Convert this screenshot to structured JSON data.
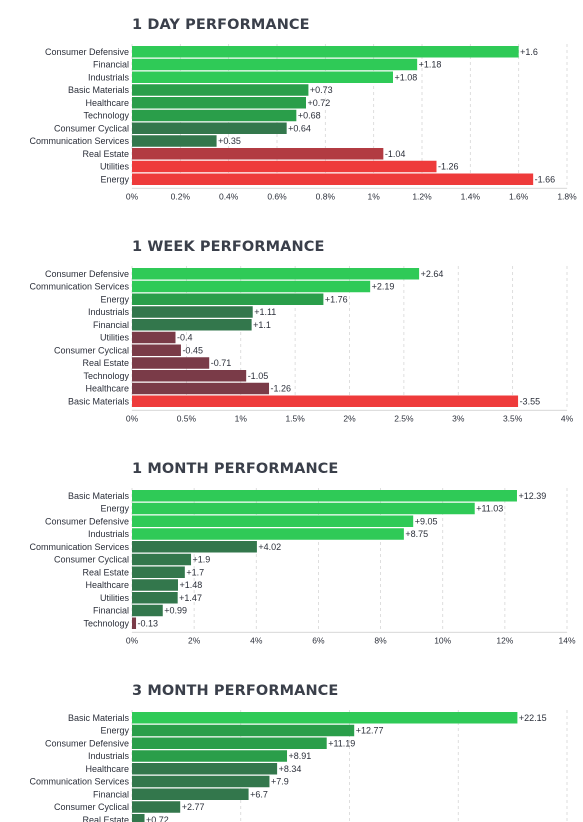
{
  "colors": {
    "strong_pos": "#2fca57",
    "mid_pos": "#2a9e4a",
    "weak_pos": "#33774c",
    "weak_neg": "#7a3b48",
    "mid_neg": "#b23b42",
    "strong_neg": "#ee3b3b",
    "grid": "#d6d6d6",
    "text": "#2b2f3a"
  },
  "chart_data": [
    {
      "type": "bar",
      "orientation": "horizontal",
      "title": "1 DAY PERFORMANCE",
      "categories": [
        "Consumer Defensive",
        "Financial",
        "Industrials",
        "Basic Materials",
        "Healthcare",
        "Technology",
        "Consumer Cyclical",
        "Communication Services",
        "Real Estate",
        "Utilities",
        "Energy"
      ],
      "values": [
        1.6,
        1.18,
        1.08,
        0.73,
        0.72,
        0.68,
        0.64,
        0.35,
        -1.04,
        -1.26,
        -1.66
      ],
      "value_labels": [
        "+1.6",
        "+1.18",
        "+1.08",
        "+0.73",
        "+0.72",
        "+0.68",
        "+0.64",
        "+0.35",
        "-1.04",
        "-1.26",
        "-1.66"
      ],
      "tick_labels": [
        "0%",
        "0.2%",
        "0.4%",
        "0.6%",
        "0.8%",
        "1%",
        "1.2%",
        "1.4%",
        "1.6%",
        "1.8%"
      ],
      "xlim": [
        0,
        1.8
      ],
      "grid": true
    },
    {
      "type": "bar",
      "orientation": "horizontal",
      "title": "1 WEEK PERFORMANCE",
      "categories": [
        "Consumer Defensive",
        "Communication Services",
        "Energy",
        "Industrials",
        "Financial",
        "Utilities",
        "Consumer Cyclical",
        "Real Estate",
        "Technology",
        "Healthcare",
        "Basic Materials"
      ],
      "values": [
        2.64,
        2.19,
        1.76,
        1.11,
        1.1,
        -0.4,
        -0.45,
        -0.71,
        -1.05,
        -1.26,
        -3.55
      ],
      "value_labels": [
        "+2.64",
        "+2.19",
        "+1.76",
        "+1.11",
        "+1.1",
        "-0.4",
        "-0.45",
        "-0.71",
        "-1.05",
        "-1.26",
        "-3.55"
      ],
      "tick_labels": [
        "0%",
        "0.5%",
        "1%",
        "1.5%",
        "2%",
        "2.5%",
        "3%",
        "3.5%",
        "4%"
      ],
      "xlim": [
        0,
        4
      ],
      "grid": true
    },
    {
      "type": "bar",
      "orientation": "horizontal",
      "title": "1 MONTH PERFORMANCE",
      "categories": [
        "Basic Materials",
        "Energy",
        "Consumer Defensive",
        "Industrials",
        "Communication Services",
        "Consumer Cyclical",
        "Real Estate",
        "Healthcare",
        "Utilities",
        "Financial",
        "Technology"
      ],
      "values": [
        12.39,
        11.03,
        9.05,
        8.75,
        4.02,
        1.9,
        1.7,
        1.48,
        1.47,
        0.99,
        -0.13
      ],
      "value_labels": [
        "+12.39",
        "+11.03",
        "+9.05",
        "+8.75",
        "+4.02",
        "+1.9",
        "+1.7",
        "+1.48",
        "+1.47",
        "+0.99",
        "-0.13"
      ],
      "tick_labels": [
        "0%",
        "2%",
        "4%",
        "6%",
        "8%",
        "10%",
        "12%",
        "14%"
      ],
      "xlim": [
        0,
        14
      ],
      "grid": true
    },
    {
      "type": "bar",
      "orientation": "horizontal",
      "title": "3 MONTH PERFORMANCE",
      "categories": [
        "Basic Materials",
        "Energy",
        "Consumer Defensive",
        "Industrials",
        "Healthcare",
        "Communication Services",
        "Financial",
        "Consumer Cyclical",
        "Real Estate"
      ],
      "values": [
        22.15,
        12.77,
        11.19,
        8.91,
        8.34,
        7.9,
        6.7,
        2.77,
        0.72
      ],
      "value_labels": [
        "+22.15",
        "+12.77",
        "+11.19",
        "+8.91",
        "+8.34",
        "+7.9",
        "+6.7",
        "+2.77",
        "+0.72"
      ],
      "tick_labels": [],
      "xlim": [
        0,
        25
      ],
      "grid": true
    }
  ]
}
